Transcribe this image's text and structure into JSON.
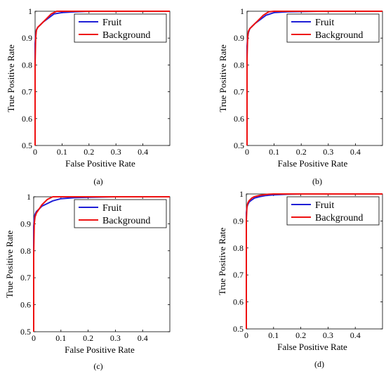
{
  "chart_data": [
    {
      "type": "line",
      "caption": "(a)",
      "xlabel": "False Positive Rate",
      "ylabel": "True Positive Rate",
      "xlim": [
        0,
        0.5
      ],
      "ylim": [
        0.5,
        1
      ],
      "xticks": [
        "0",
        "0.1",
        "0.2",
        "0.3",
        "0.4"
      ],
      "yticks": [
        "0.5",
        "0.6",
        "0.7",
        "0.8",
        "0.9",
        "1"
      ],
      "legend_position": "top-right",
      "series": [
        {
          "name": "Fruit",
          "color": "#1f1fd6",
          "x": [
            0,
            0,
            0.002,
            0.005,
            0.01,
            0.02,
            0.03,
            0.05,
            0.07,
            0.1,
            0.15,
            0.2,
            0.28,
            0.5
          ],
          "y": [
            0.5,
            0.88,
            0.91,
            0.93,
            0.94,
            0.95,
            0.96,
            0.975,
            0.99,
            0.995,
            0.998,
            1,
            1,
            1
          ]
        },
        {
          "name": "Background",
          "color": "#ee1111",
          "x": [
            0,
            0,
            0.002,
            0.005,
            0.01,
            0.02,
            0.04,
            0.06,
            0.08,
            0.1,
            0.2,
            0.5
          ],
          "y": [
            0.5,
            0.8,
            0.9,
            0.93,
            0.94,
            0.95,
            0.97,
            0.99,
            1,
            1,
            1,
            1
          ]
        }
      ]
    },
    {
      "type": "line",
      "caption": "(b)",
      "xlabel": "False Positive Rate",
      "ylabel": "True Positive Rate",
      "xlim": [
        0,
        0.5
      ],
      "ylim": [
        0.5,
        1
      ],
      "xticks": [
        "0",
        "0.1",
        "0.2",
        "0.3",
        "0.4"
      ],
      "yticks": [
        "0.5",
        "0.6",
        "0.7",
        "0.8",
        "0.9",
        "1"
      ],
      "legend_position": "top-right",
      "series": [
        {
          "name": "Fruit",
          "color": "#1f1fd6",
          "x": [
            0,
            0,
            0.002,
            0.005,
            0.01,
            0.02,
            0.03,
            0.05,
            0.07,
            0.1,
            0.15,
            0.27,
            0.5
          ],
          "y": [
            0.5,
            0.87,
            0.9,
            0.92,
            0.935,
            0.945,
            0.955,
            0.97,
            0.985,
            0.995,
            0.998,
            1,
            1
          ]
        },
        {
          "name": "Background",
          "color": "#ee1111",
          "x": [
            0,
            0,
            0.002,
            0.005,
            0.01,
            0.02,
            0.04,
            0.06,
            0.08,
            0.1,
            0.2,
            0.5
          ],
          "y": [
            0.5,
            0.82,
            0.9,
            0.925,
            0.935,
            0.945,
            0.965,
            0.985,
            0.998,
            1,
            1,
            1
          ]
        }
      ]
    },
    {
      "type": "line",
      "caption": "(c)",
      "xlabel": "False Positive Rate",
      "ylabel": "True Positive Rate",
      "xlim": [
        0,
        0.5
      ],
      "ylim": [
        0.5,
        1
      ],
      "xticks": [
        "0",
        "0.1",
        "0.2",
        "0.3",
        "0.4"
      ],
      "yticks": [
        "0.5",
        "0.6",
        "0.7",
        "0.8",
        "0.9",
        "1"
      ],
      "legend_position": "top-right",
      "series": [
        {
          "name": "Fruit",
          "color": "#1f1fd6",
          "x": [
            0,
            0,
            0.002,
            0.005,
            0.01,
            0.02,
            0.03,
            0.05,
            0.07,
            0.1,
            0.15,
            0.3,
            0.5
          ],
          "y": [
            0.5,
            0.89,
            0.92,
            0.935,
            0.945,
            0.955,
            0.965,
            0.975,
            0.985,
            0.993,
            0.997,
            1,
            1
          ]
        },
        {
          "name": "Background",
          "color": "#ee1111",
          "x": [
            0,
            0,
            0.002,
            0.005,
            0.01,
            0.02,
            0.03,
            0.05,
            0.07,
            0.1,
            0.2,
            0.5
          ],
          "y": [
            0.5,
            0.78,
            0.9,
            0.925,
            0.94,
            0.955,
            0.97,
            0.99,
            1,
            1,
            1,
            1
          ]
        }
      ]
    },
    {
      "type": "line",
      "caption": "(d)",
      "xlabel": "False Positive Rate",
      "ylabel": "True Positive Rate",
      "xlim": [
        0,
        0.5
      ],
      "ylim": [
        0.5,
        1
      ],
      "xticks": [
        "0",
        "0.1",
        "0.2",
        "0.3",
        "0.4"
      ],
      "yticks": [
        "0.5",
        "0.6",
        "0.7",
        "0.8",
        "0.9",
        "1"
      ],
      "legend_position": "top-right",
      "series": [
        {
          "name": "Fruit",
          "color": "#1f1fd6",
          "x": [
            0,
            0,
            0.002,
            0.005,
            0.01,
            0.02,
            0.03,
            0.05,
            0.07,
            0.1,
            0.15,
            0.2,
            0.5
          ],
          "y": [
            0.5,
            0.93,
            0.95,
            0.96,
            0.97,
            0.978,
            0.985,
            0.99,
            0.994,
            0.997,
            0.999,
            1,
            1
          ]
        },
        {
          "name": "Background",
          "color": "#ee1111",
          "x": [
            0,
            0,
            0.002,
            0.005,
            0.01,
            0.02,
            0.03,
            0.05,
            0.08,
            0.1,
            0.5
          ],
          "y": [
            0.5,
            0.9,
            0.95,
            0.965,
            0.975,
            0.985,
            0.99,
            0.995,
            0.999,
            1,
            1
          ]
        }
      ]
    }
  ]
}
